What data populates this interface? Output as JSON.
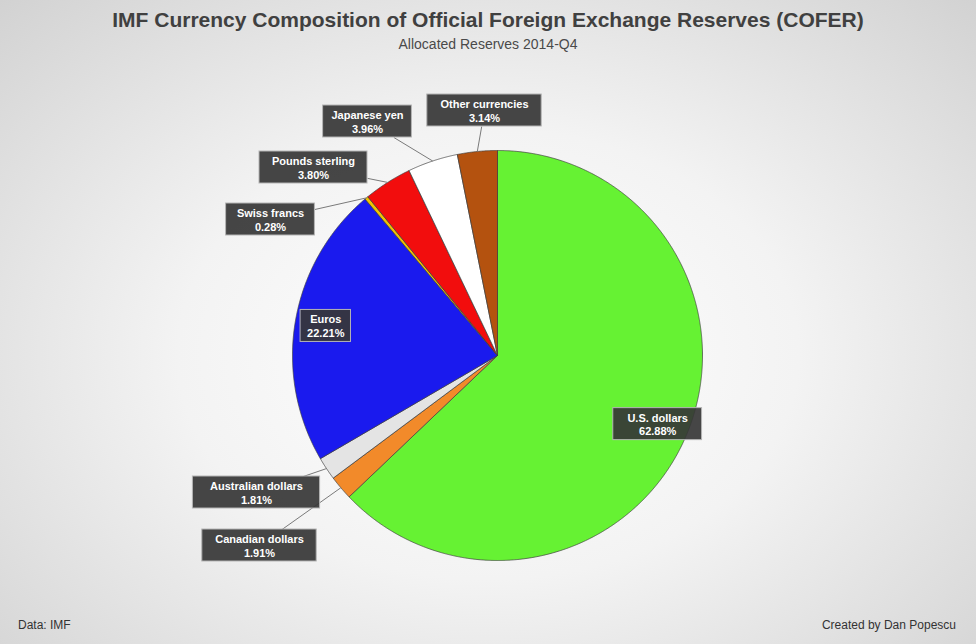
{
  "chart_data": {
    "type": "pie",
    "title": "IMF Currency Composition of Official Foreign Exchange Reserves (COFER)",
    "subtitle": "Allocated Reserves 2014-Q4",
    "categories": [
      "U.S. dollars",
      "Canadian dollars",
      "Australian dollars",
      "Euros",
      "Swiss francs",
      "Pounds sterling",
      "Japanese yen",
      "Other currencies"
    ],
    "values": [
      62.88,
      1.91,
      1.81,
      22.21,
      0.28,
      3.8,
      3.96,
      3.14
    ],
    "value_labels": [
      "62.88%",
      "1.91%",
      "1.81%",
      "22.21%",
      "0.28%",
      "3.80%",
      "3.96%",
      "3.14%"
    ],
    "colors": [
      "#66f233",
      "#f28a2a",
      "#e4e4e4",
      "#1a1aee",
      "#f2c200",
      "#f20d0d",
      "#ffffff",
      "#b4520f"
    ],
    "data_labels": true,
    "annotations": [
      "Data: IMF",
      "Created by Dan Popescu"
    ]
  }
}
